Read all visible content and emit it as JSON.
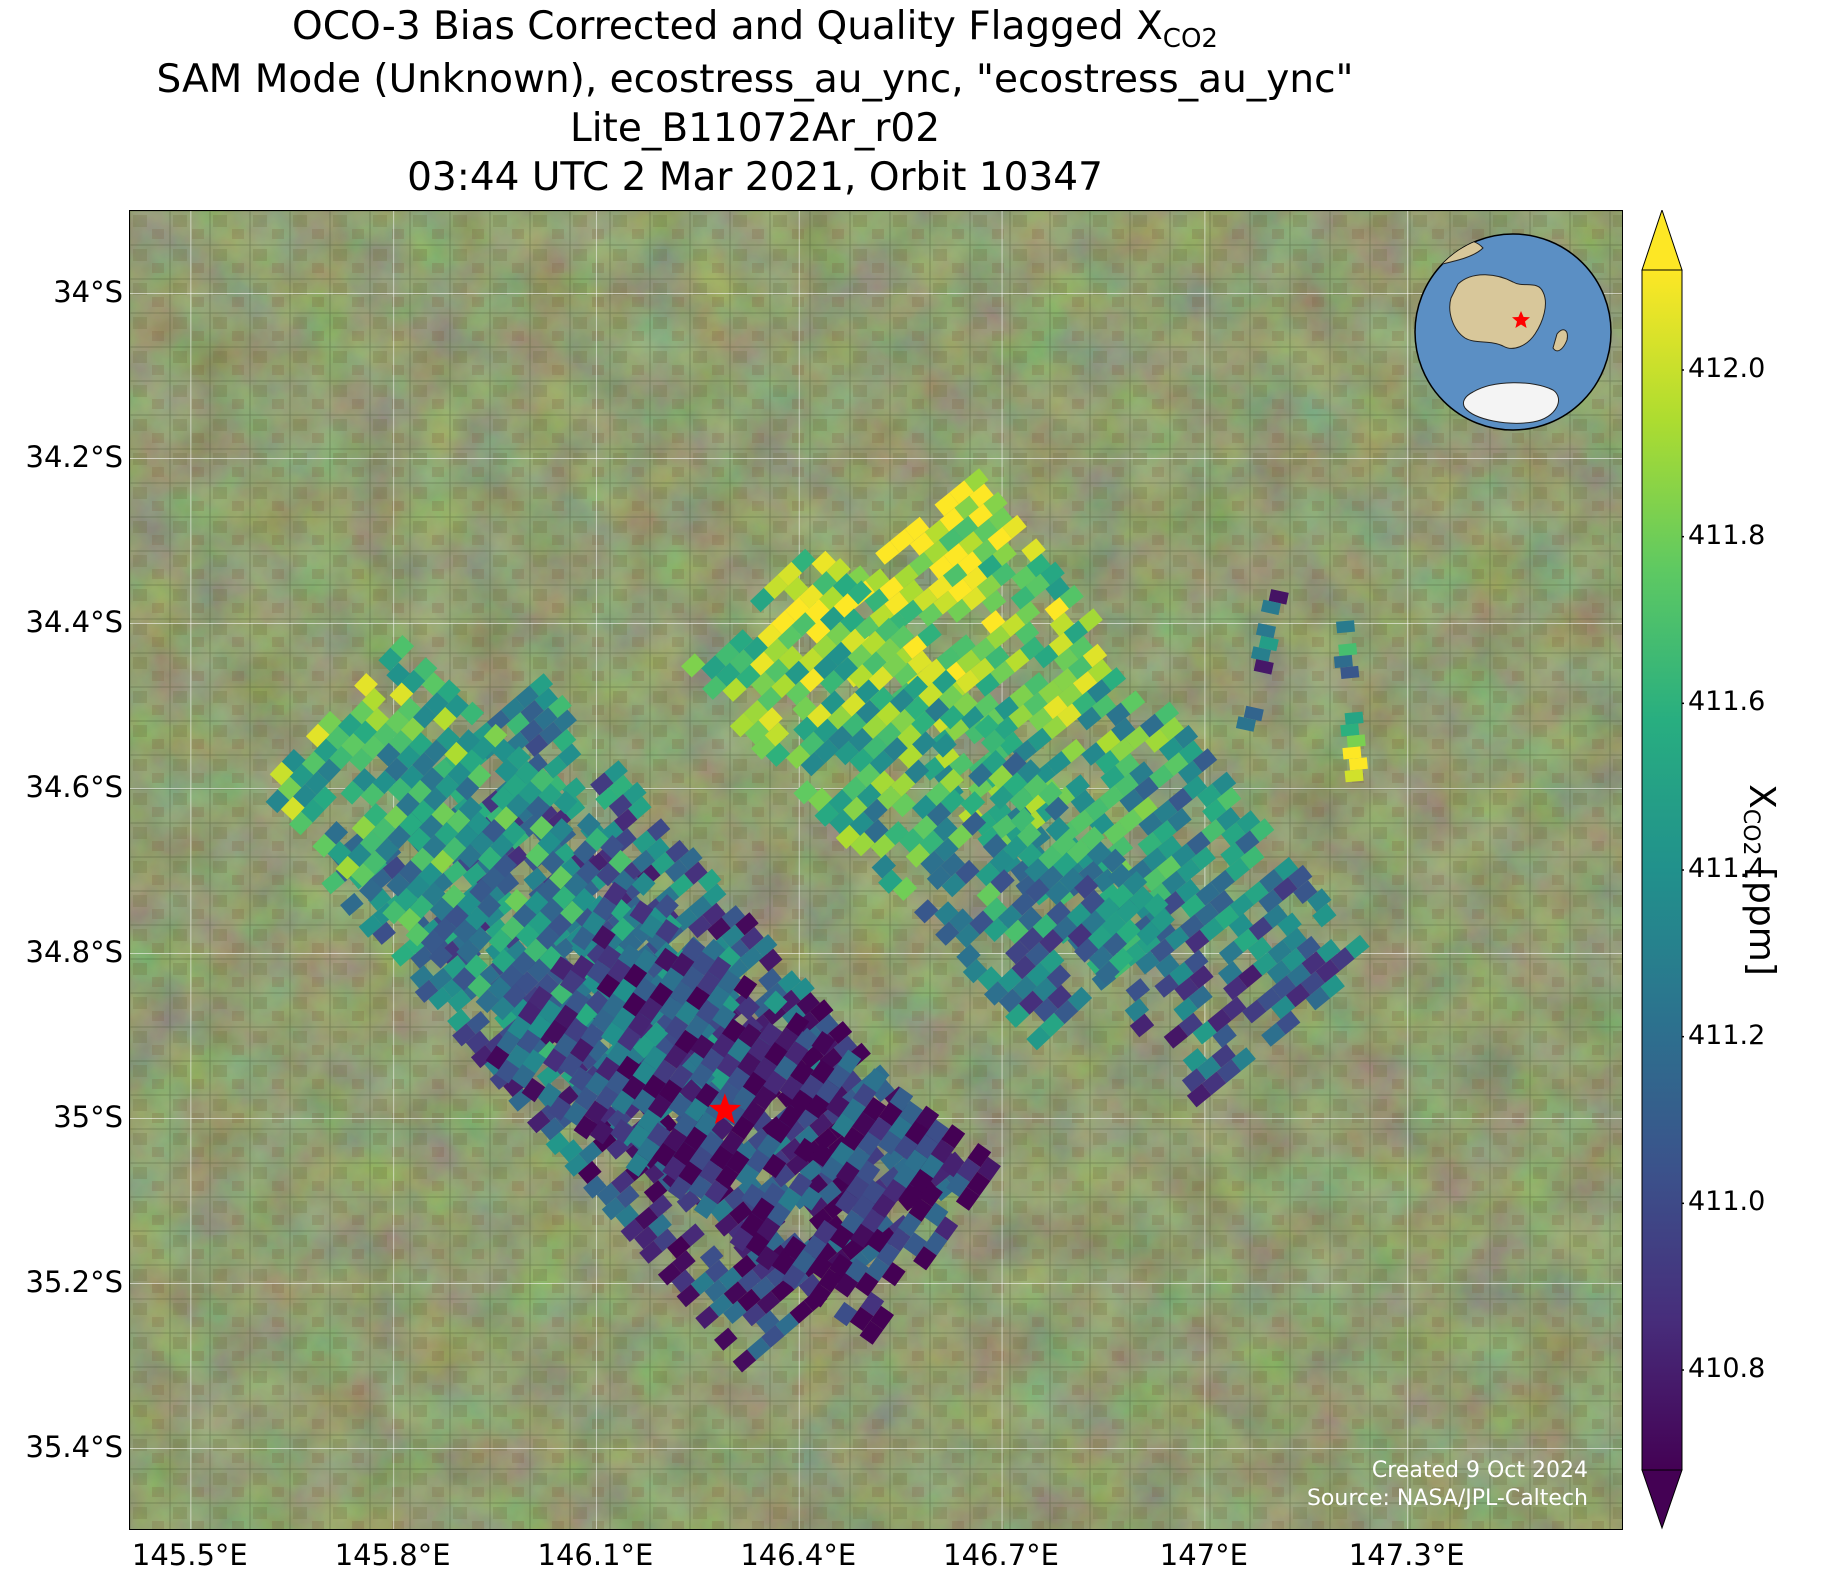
{
  "title": {
    "line1_prefix": "OCO-3 Bias Corrected and Quality Flagged X",
    "line1_sub": "CO2",
    "line2": "SAM Mode (Unknown), ecostress_au_ync, \"ecostress_au_ync\"",
    "line3": "Lite_B11072Ar_r02",
    "line4": "03:44 UTC 2 Mar 2021, Orbit 10347"
  },
  "map": {
    "lon_range": [
      145.41,
      147.62
    ],
    "lat_range": [
      -35.5,
      -33.9
    ],
    "x_ticks": [
      {
        "lon": 145.5,
        "label": "145.5°E"
      },
      {
        "lon": 145.8,
        "label": "145.8°E"
      },
      {
        "lon": 146.1,
        "label": "146.1°E"
      },
      {
        "lon": 146.4,
        "label": "146.4°E"
      },
      {
        "lon": 146.7,
        "label": "146.7°E"
      },
      {
        "lon": 147.0,
        "label": "147°E"
      },
      {
        "lon": 147.3,
        "label": "147.3°E"
      }
    ],
    "y_ticks": [
      {
        "lat": -34.0,
        "label": "34°S"
      },
      {
        "lat": -34.2,
        "label": "34.2°S"
      },
      {
        "lat": -34.4,
        "label": "34.4°S"
      },
      {
        "lat": -34.6,
        "label": "34.6°S"
      },
      {
        "lat": -34.8,
        "label": "34.8°S"
      },
      {
        "lat": -35.0,
        "label": "35°S"
      },
      {
        "lat": -35.2,
        "label": "35.2°S"
      },
      {
        "lat": -35.4,
        "label": "35.4°S"
      }
    ],
    "target": {
      "lon": 146.29,
      "lat": -34.99,
      "marker": "red-star",
      "color": "#ff0000"
    },
    "gridlines": true,
    "inset_globe": {
      "position": "top-right",
      "marker": "red-star"
    }
  },
  "colorbar": {
    "min": 410.68,
    "max": 412.12,
    "ticks": [
      "410.8",
      "411.0",
      "411.2",
      "411.4",
      "411.6",
      "411.8",
      "412.0"
    ],
    "label_prefix": "X",
    "label_sub": "CO2",
    "label_suffix": " [ppm]",
    "colormap": "viridis",
    "extend": "both"
  },
  "credit": {
    "created": "Created 9 Oct 2024",
    "source": "Source: NASA/JPL-Caltech"
  }
}
